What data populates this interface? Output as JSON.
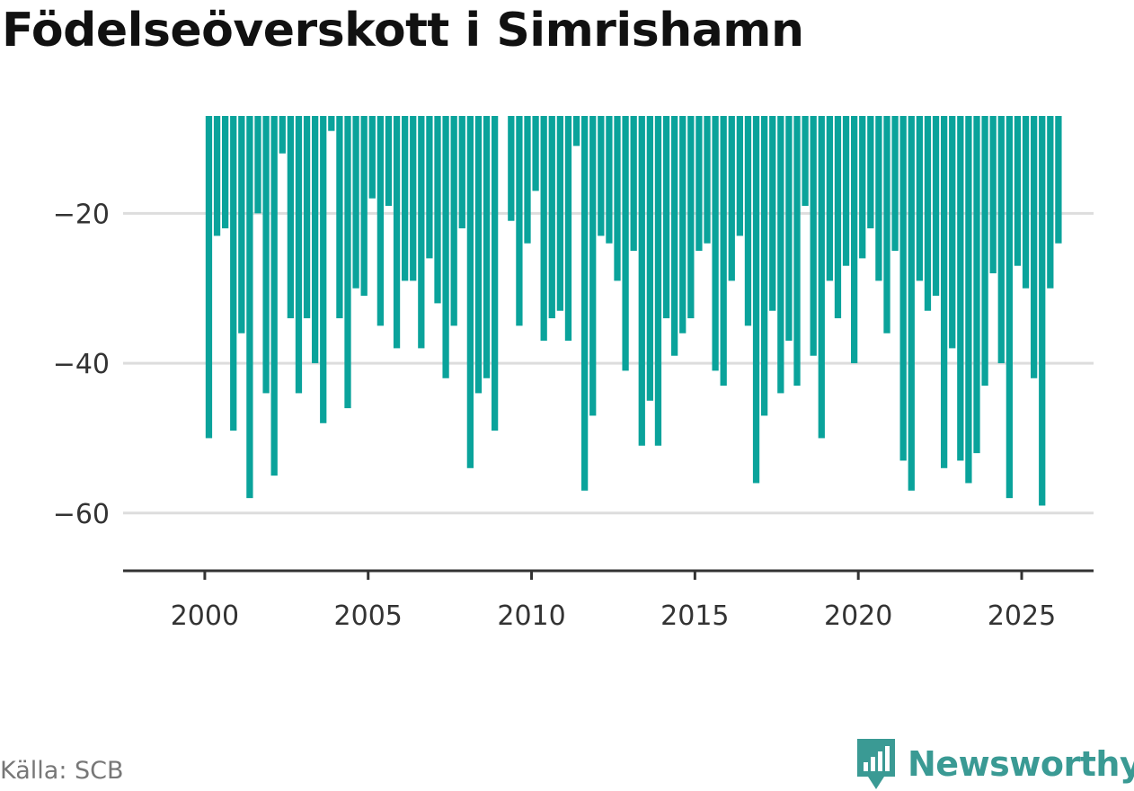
{
  "title": "Födelseöverskott i Simrishamn",
  "source": "Källa: SCB",
  "brand": {
    "name": "Newsworthy",
    "color": "#3a9a94",
    "icon": "newsworthy-logo-icon"
  },
  "colors": {
    "bar": "#0aa39b",
    "grid": "#dddddd",
    "axis": "#333333"
  },
  "chart_data": {
    "type": "bar",
    "title": "Födelseöverskott i Simrishamn",
    "xlabel": "",
    "ylabel": "",
    "x_start": 2000,
    "x_step": 0.25,
    "xlim": [
      1997.5,
      2027.2
    ],
    "ylim": [
      -67.7,
      -7
    ],
    "y_ticks": [
      -20,
      -40,
      -60
    ],
    "y_tick_labels": [
      "−20",
      "−40",
      "−60"
    ],
    "x_ticks": [
      2000,
      2005,
      2010,
      2015,
      2020,
      2025
    ],
    "grid": true,
    "values": [
      -50,
      -23,
      -22,
      -49,
      -36,
      -58,
      -20,
      -44,
      -55,
      -12,
      -34,
      -44,
      -34,
      -40,
      -48,
      -9,
      -34,
      -46,
      -30,
      -31,
      -18,
      -35,
      -19,
      -38,
      -29,
      -29,
      -38,
      -26,
      -32,
      -42,
      -35,
      -22,
      -54,
      -44,
      -42,
      -49,
      null,
      -21,
      -35,
      -24,
      -17,
      -37,
      -34,
      -33,
      -37,
      -11,
      -57,
      -47,
      -23,
      -24,
      -29,
      -41,
      -25,
      -51,
      -45,
      -51,
      -34,
      -39,
      -36,
      -34,
      -25,
      -24,
      -41,
      -43,
      -29,
      -23,
      -35,
      -56,
      -47,
      -33,
      -44,
      -37,
      -43,
      -19,
      -39,
      -50,
      -29,
      -34,
      -27,
      -40,
      -26,
      -22,
      -29,
      -36,
      -25,
      -53,
      -57,
      -29,
      -33,
      -31,
      -54,
      -38,
      -53,
      -56,
      -52,
      -43,
      -28,
      -40,
      -58,
      -27,
      -30,
      -42,
      -59,
      -30,
      -24
    ]
  }
}
